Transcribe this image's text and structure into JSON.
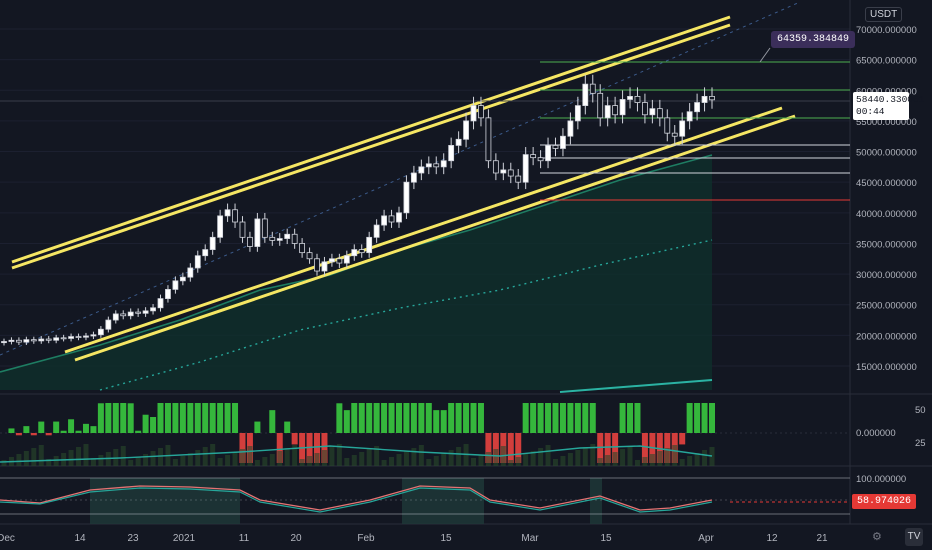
{
  "quote_unit": "USDT",
  "annotation_price": "64359.384849",
  "current_price": "58440.330001",
  "countdown": "00:44",
  "rsi_value": "58.974026",
  "colors": {
    "bg": "#131722",
    "up": "#ffffff",
    "down": "#26a69a",
    "channel": "#f5e663",
    "grid": "#2a2e39"
  },
  "icons": {
    "settings": "gear-icon",
    "logo": "tradingview-logo-icon"
  },
  "settings_glyph": "⚙",
  "logo_glyph": "TV",
  "price_axis": {
    "labels": [
      "70000.000000",
      "65000.000000",
      "60000.000000",
      "55000.000000",
      "50000.000000",
      "45000.000000",
      "40000.000000",
      "35000.000000",
      "30000.000000",
      "25000.000000",
      "20000.000000",
      "15000.000000"
    ]
  },
  "macd_axis": {
    "labels": [
      "50",
      "0.000000",
      "25"
    ]
  },
  "rsi_axis": {
    "labels": [
      "100.000000"
    ]
  },
  "time_axis": {
    "labels": [
      "Dec",
      "14",
      "23",
      "2021",
      "11",
      "20",
      "Feb",
      "15",
      "Mar",
      "15",
      "Apr",
      "12",
      "21"
    ]
  },
  "chart_data": {
    "type": "candlestick",
    "instrument_unit": "USDT",
    "ylim": [
      10000,
      72000
    ],
    "last_price": 58440.330001,
    "annotation_price": 64359.384849,
    "x_ticks": [
      "Dec",
      "14",
      "23",
      "2021",
      "11",
      "20",
      "Feb",
      "15",
      "Mar",
      "15",
      "Apr",
      "12",
      "21"
    ],
    "y_ticks": [
      70000,
      65000,
      60000,
      55000,
      50000,
      45000,
      40000,
      35000,
      30000,
      25000,
      20000,
      15000
    ],
    "closes": [
      19000,
      19200,
      18900,
      19300,
      19100,
      19400,
      19200,
      19600,
      19500,
      19800,
      19700,
      19900,
      20100,
      21000,
      22500,
      23500,
      23200,
      23800,
      23600,
      24000,
      24500,
      26000,
      27500,
      28900,
      29500,
      31000,
      33000,
      34000,
      36000,
      39500,
      40500,
      38500,
      36000,
      34500,
      39000,
      36000,
      35500,
      35800,
      36500,
      35000,
      33500,
      32500,
      30500,
      32000,
      32500,
      31800,
      33000,
      34000,
      33500,
      36000,
      38000,
      39500,
      38500,
      40000,
      45000,
      46500,
      47500,
      48000,
      47500,
      48500,
      51000,
      52000,
      55000,
      57500,
      55500,
      48500,
      46500,
      47000,
      46000,
      45000,
      49500,
      49000,
      48500,
      51000,
      50500,
      52500,
      55000,
      57500,
      61000,
      59500,
      55500,
      57500,
      56000,
      58500,
      59000,
      58000,
      56000,
      57000,
      55500,
      53000,
      52500,
      55000,
      56500,
      58000,
      59000,
      58440
    ],
    "rsi_level": 58.974026
  }
}
